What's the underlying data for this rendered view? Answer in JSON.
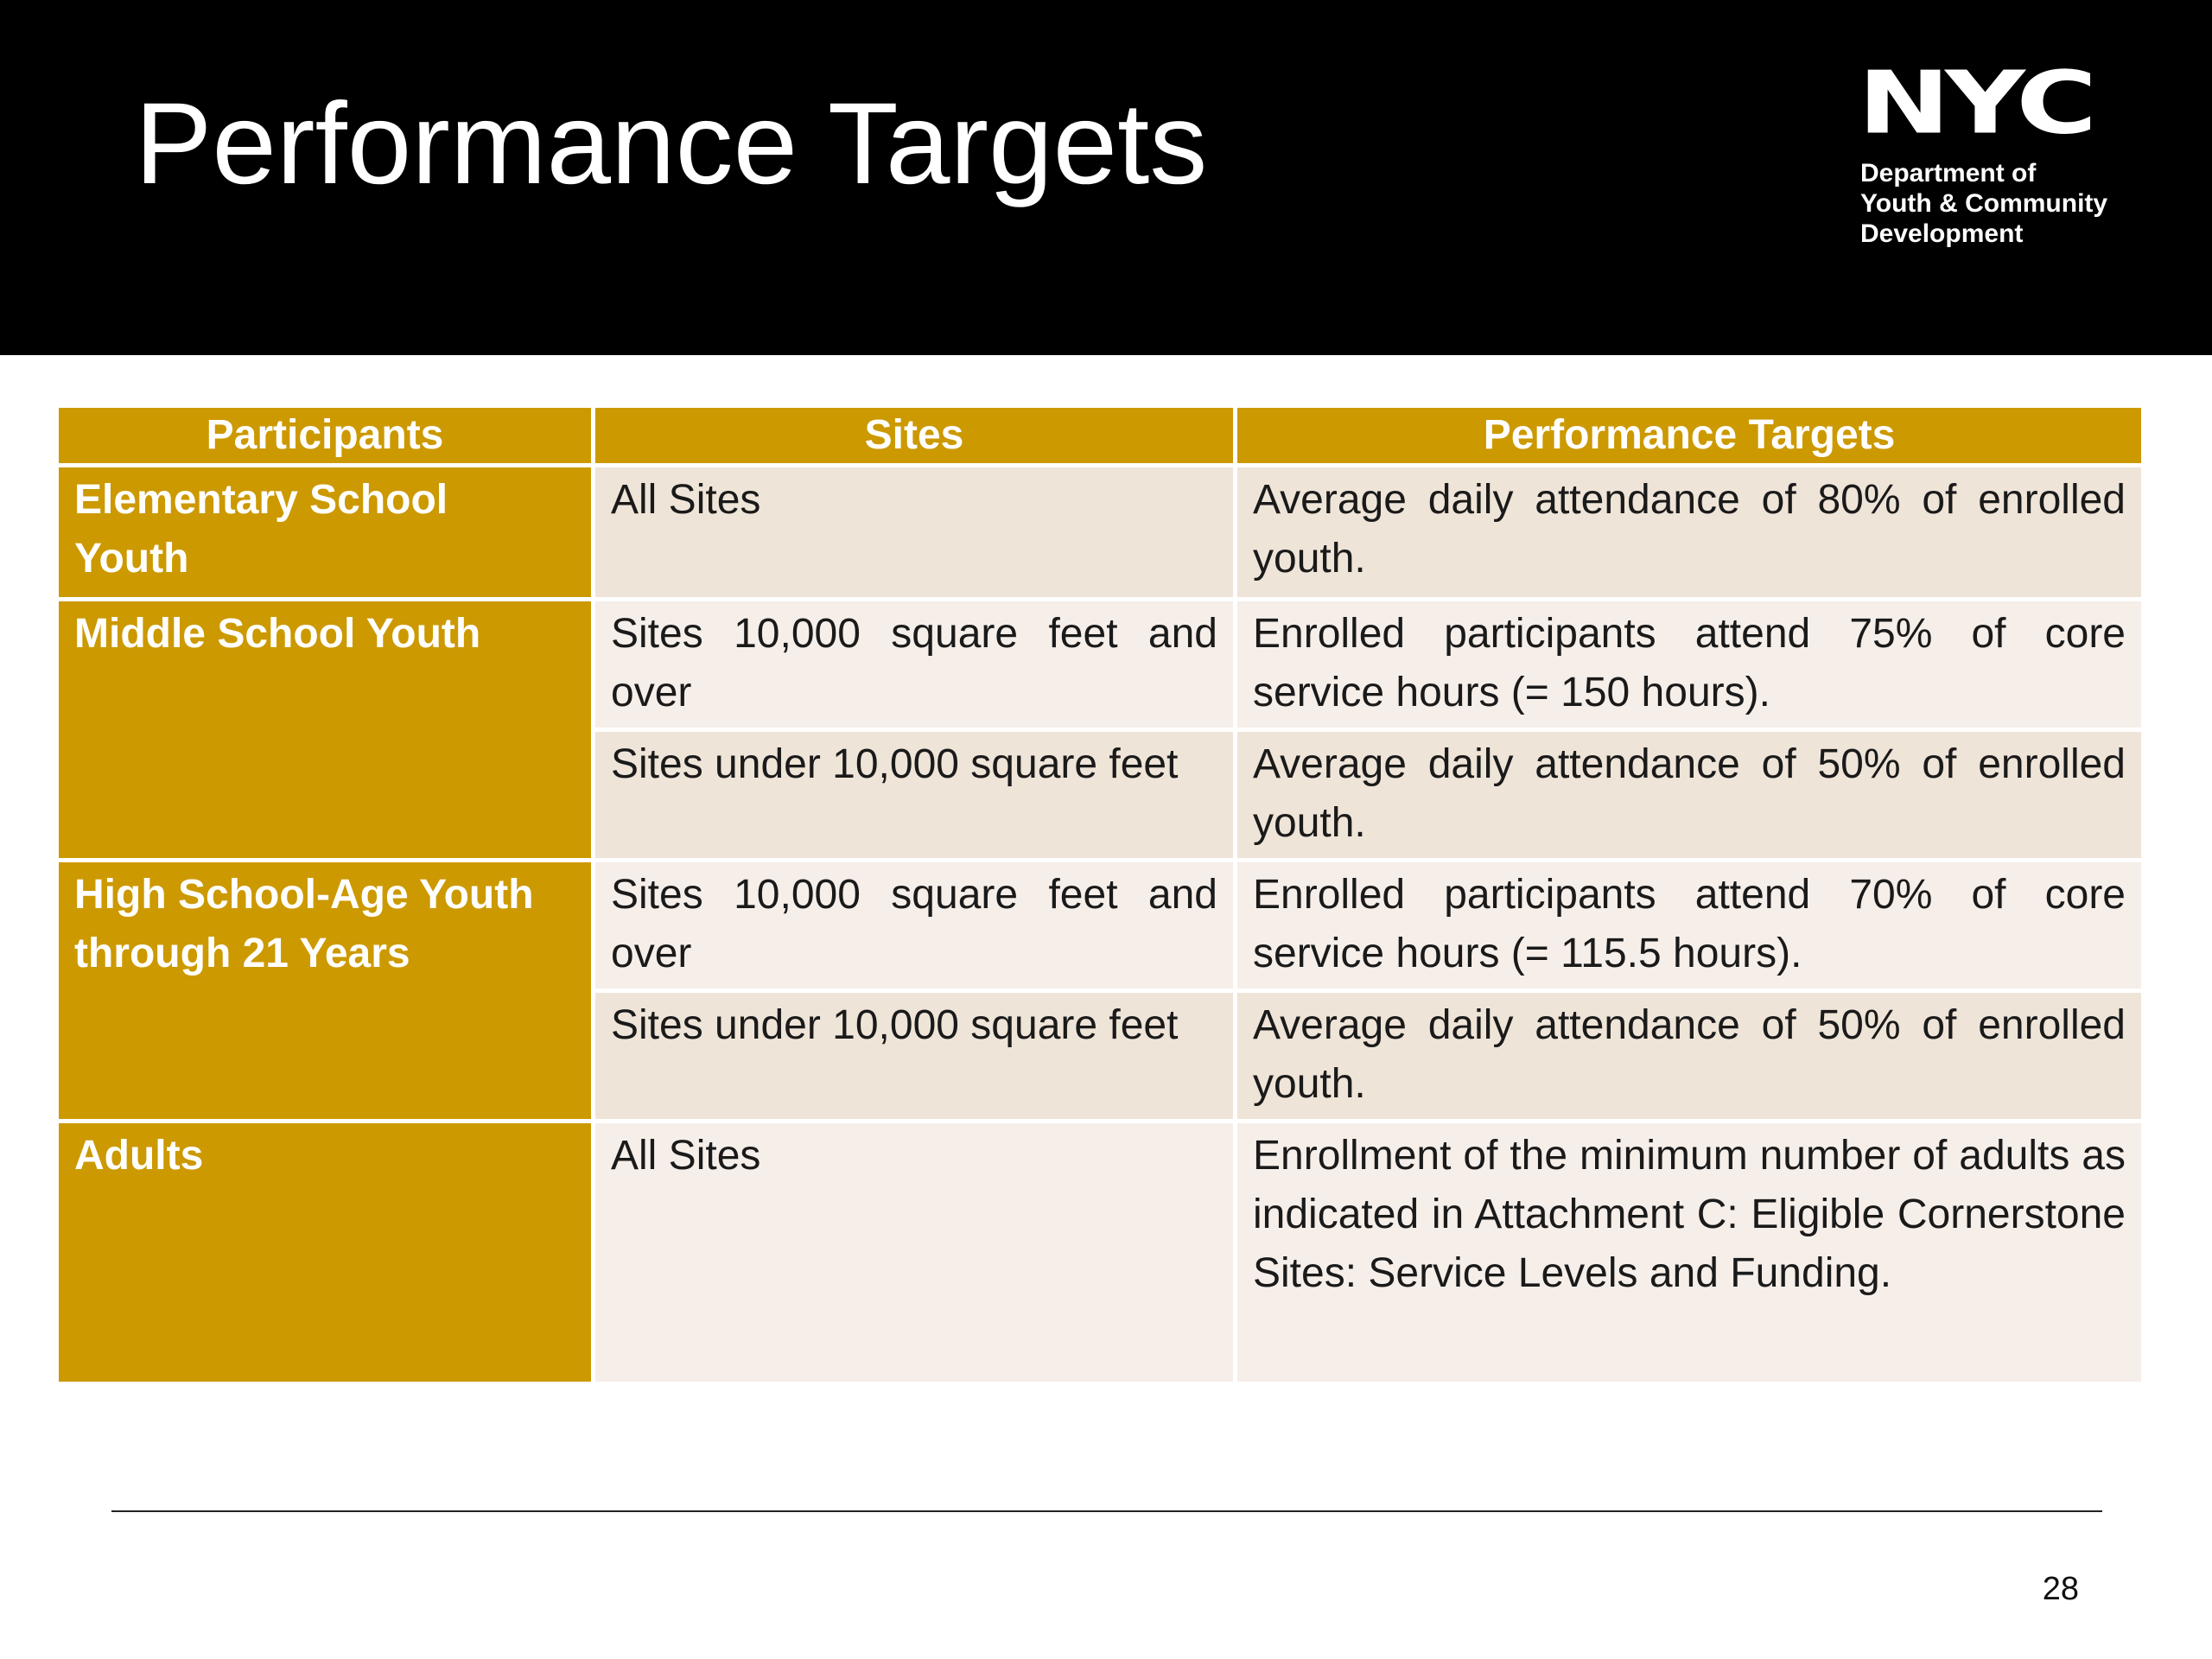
{
  "header": {
    "title": "Performance Targets",
    "logo": {
      "mark": "NYC",
      "lines": [
        "Department of",
        "Youth & Community",
        "Development"
      ]
    }
  },
  "table": {
    "columns": [
      "Participants",
      "Sites",
      "Performance Targets"
    ],
    "groups": [
      {
        "participants": "Elementary School Youth",
        "rows": [
          {
            "sites": "All Sites",
            "target": "Average daily attendance of 80% of enrolled youth."
          }
        ]
      },
      {
        "participants": "Middle School Youth",
        "rows": [
          {
            "sites": "Sites 10,000 square feet and over",
            "target": "Enrolled participants attend 75% of core service hours (= 150 hours)."
          },
          {
            "sites": "Sites under 10,000 square feet",
            "target": "Average daily attendance of 50% of enrolled youth."
          }
        ]
      },
      {
        "participants": "High School-Age Youth through 21 Years",
        "rows": [
          {
            "sites": "Sites 10,000 square feet and over",
            "target": "Enrolled participants attend 70% of core service hours (= 115.5 hours)."
          },
          {
            "sites": "Sites under 10,000 square feet",
            "target": "Average daily attendance of 50% of enrolled youth."
          }
        ]
      },
      {
        "participants": "Adults",
        "rows": [
          {
            "sites": "All Sites",
            "target": "Enrollment of the minimum number of adults as indicated in Attachment C: Eligible Cornerstone Sites: Service Levels and Funding."
          }
        ]
      }
    ]
  },
  "footer": {
    "page": 28
  }
}
